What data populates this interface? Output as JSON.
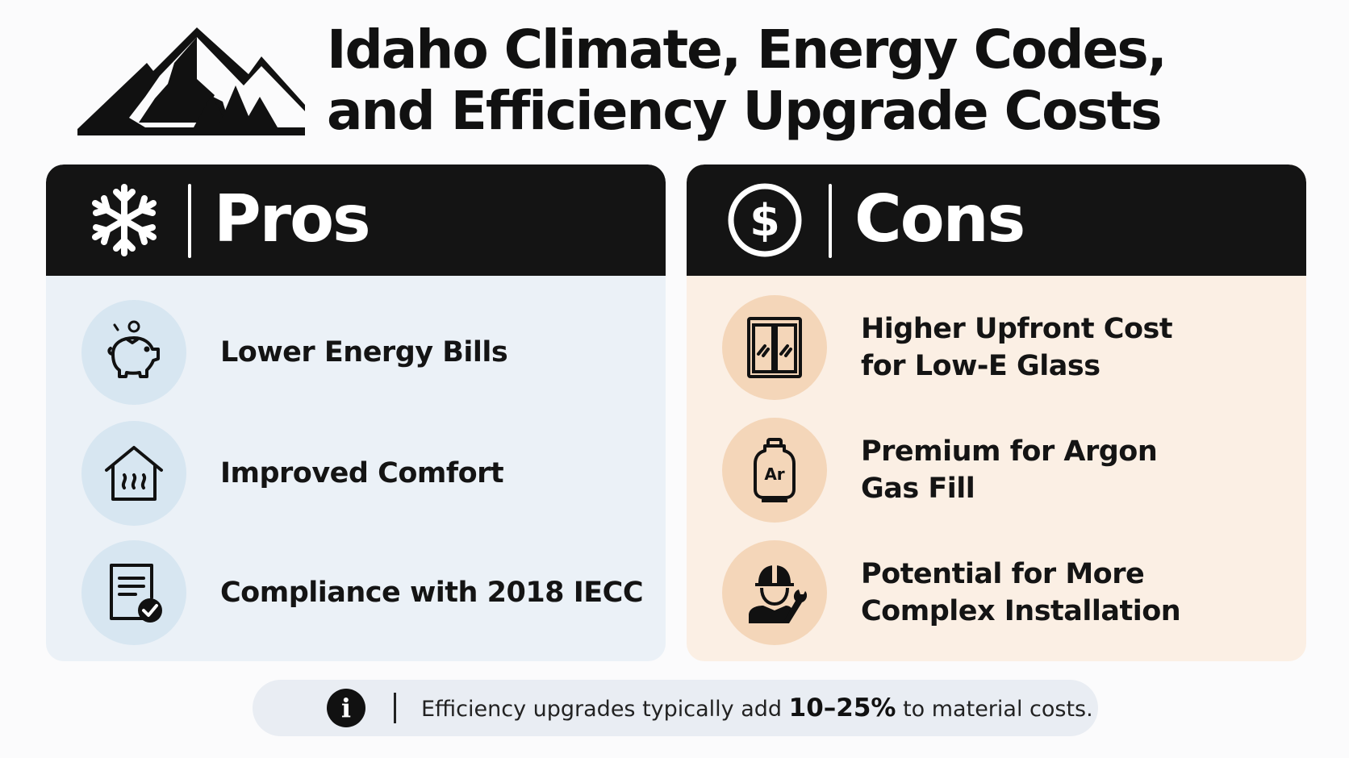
{
  "header": {
    "title_line1": "Idaho Climate, Energy Codes,",
    "title_line2": "and Efficiency Upgrade Costs",
    "logo_icon": "mountain-trees-icon"
  },
  "pros": {
    "heading": "Pros",
    "heading_icon": "snowflake-icon",
    "items": [
      {
        "label": "Lower Energy Bills",
        "icon": "piggy-bank-icon"
      },
      {
        "label": "Improved Comfort",
        "icon": "warm-house-icon"
      },
      {
        "label": "Compliance with 2018 IECC",
        "icon": "checked-document-icon"
      }
    ]
  },
  "cons": {
    "heading": "Cons",
    "heading_icon": "dollar-coin-icon",
    "items": [
      {
        "line1": "Higher Upfront Cost",
        "line2": "for Low-E Glass",
        "icon": "window-icon"
      },
      {
        "line1": "Premium for Argon",
        "line2": "Gas Fill",
        "icon": "gas-cylinder-icon",
        "icon_text": "Ar"
      },
      {
        "line1": "Potential for More",
        "line2": "Complex Installation",
        "icon": "worker-wrench-icon"
      }
    ]
  },
  "note": {
    "icon": "info-icon",
    "icon_glyph": "i",
    "text_before": "Efficiency upgrades typically add ",
    "text_bold": "10–25%",
    "text_after": " to material costs."
  },
  "colors": {
    "dark": "#141414",
    "pros_bg": "#ebf1f7",
    "pros_circle": "#d7e6f1",
    "cons_bg": "#fbefe4",
    "cons_circle": "#f4d6b9",
    "note_bg": "#e9edf3"
  }
}
